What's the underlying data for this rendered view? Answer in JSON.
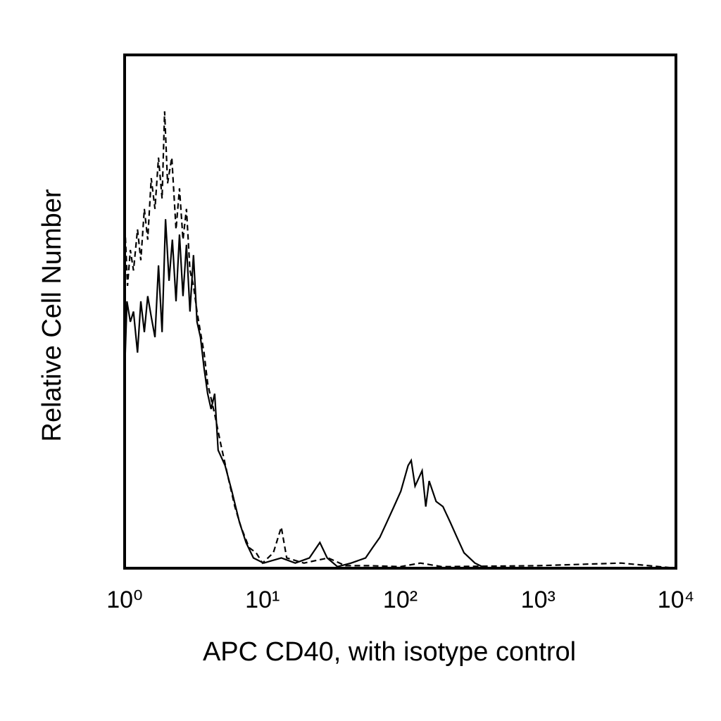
{
  "chart_data": {
    "type": "line",
    "x_label": "APC CD40, with isotype control",
    "y_label": "Relative Cell Number",
    "xscale": "log",
    "xlim": [
      1,
      10000
    ],
    "ylim": [
      0,
      100
    ],
    "xticks": [
      {
        "value": 1,
        "label": "10⁰"
      },
      {
        "value": 10,
        "label": "10¹"
      },
      {
        "value": 100,
        "label": "10²"
      },
      {
        "value": 1000,
        "label": "10³"
      },
      {
        "value": 10000,
        "label": "10⁴"
      }
    ],
    "grid": false,
    "series": [
      {
        "color": "#000000",
        "dash": "solid",
        "x": [
          1,
          1.04,
          1.1,
          1.16,
          1.24,
          1.31,
          1.39,
          1.47,
          1.56,
          1.66,
          1.76,
          1.87,
          1.98,
          2.1,
          2.22,
          2.36,
          2.5,
          2.65,
          2.81,
          2.98,
          3.16,
          3.35,
          3.55,
          3.77,
          4.0,
          4.24,
          4.5,
          4.77,
          5.36,
          6.0,
          6.8,
          7.6,
          8.6,
          10.2,
          13.7,
          17.3,
          21.9,
          26.1,
          29.5,
          35,
          44,
          56,
          63,
          71,
          80,
          90,
          101,
          114,
          120,
          128,
          144,
          153,
          162,
          182,
          204,
          230,
          258,
          290,
          348,
          415,
          10000
        ],
        "values": [
          38,
          52,
          48,
          50,
          42,
          52,
          46,
          53,
          49,
          45,
          59,
          46,
          68,
          56,
          64,
          52,
          65,
          53,
          63,
          50,
          61,
          48,
          45,
          39,
          34,
          31,
          34,
          23,
          20,
          15,
          9,
          5,
          2,
          1,
          2,
          1,
          2,
          5,
          2,
          0.3,
          1,
          2,
          4,
          6,
          9,
          12,
          15,
          20,
          21,
          16,
          19,
          12,
          17,
          13,
          12,
          9,
          6,
          3,
          1,
          0,
          0
        ]
      },
      {
        "color": "#000000",
        "dash": "dashed",
        "x": [
          1,
          1.05,
          1.1,
          1.16,
          1.24,
          1.31,
          1.39,
          1.47,
          1.56,
          1.66,
          1.76,
          1.87,
          1.95,
          2.05,
          2.2,
          2.36,
          2.5,
          2.65,
          2.81,
          2.98,
          3.16,
          3.35,
          3.55,
          3.77,
          4.0,
          4.5,
          5.0,
          5.6,
          6.3,
          7.0,
          8.0,
          9.0,
          10,
          12,
          13.7,
          15,
          20,
          30,
          40,
          60,
          100,
          140,
          200,
          1000,
          4000,
          10000
        ],
        "values": [
          68,
          55,
          62,
          58,
          66,
          60,
          70,
          64,
          76,
          70,
          80,
          72,
          89,
          75,
          80,
          66,
          74,
          64,
          70,
          58,
          55,
          50,
          46,
          42,
          36,
          30,
          24,
          18,
          12,
          8,
          4,
          3,
          1,
          3,
          8,
          2,
          1,
          2,
          0.5,
          0.5,
          0.3,
          1,
          0.3,
          0.5,
          1,
          0
        ]
      }
    ]
  }
}
